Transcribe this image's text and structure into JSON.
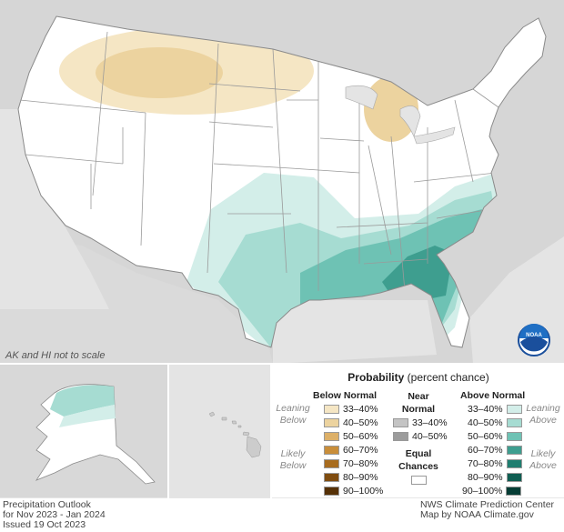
{
  "map": {
    "scale_note": "AK and HI not to scale",
    "logo_text": "NOAA"
  },
  "legend": {
    "title_bold": "Probability",
    "title_rest": " (percent chance)",
    "below": {
      "heading": "Below Normal",
      "side_top": [
        "Leaning",
        "Below"
      ],
      "side_bottom": [
        "Likely",
        "Below"
      ],
      "items": [
        {
          "label": "33–40%",
          "color": "#f5e6c4"
        },
        {
          "label": "40–50%",
          "color": "#ecd39f"
        },
        {
          "label": "50–60%",
          "color": "#ddb068"
        },
        {
          "label": "60–70%",
          "color": "#c98e3a"
        },
        {
          "label": "70–80%",
          "color": "#a86c1e"
        },
        {
          "label": "80–90%",
          "color": "#804d10"
        },
        {
          "label": "90–100%",
          "color": "#553006"
        }
      ]
    },
    "near": {
      "heading": [
        "Near",
        "Normal"
      ],
      "items": [
        {
          "label": "33–40%",
          "color": "#c4c4c4"
        },
        {
          "label": "40–50%",
          "color": "#9c9c9c"
        }
      ],
      "equal": [
        "Equal",
        "Chances"
      ],
      "equal_color": "#ffffff"
    },
    "above": {
      "heading": "Above Normal",
      "side_top": [
        "Leaning",
        "Above"
      ],
      "side_bottom": [
        "Likely",
        "Above"
      ],
      "items": [
        {
          "label": "33–40%",
          "color": "#d3eee9"
        },
        {
          "label": "40–50%",
          "color": "#a6dcd2"
        },
        {
          "label": "50–60%",
          "color": "#6ec2b4"
        },
        {
          "label": "60–70%",
          "color": "#3e9e8f"
        },
        {
          "label": "70–80%",
          "color": "#1f7e70"
        },
        {
          "label": "80–90%",
          "color": "#0f5e52"
        },
        {
          "label": "90–100%",
          "color": "#053d35"
        }
      ]
    }
  },
  "footer": {
    "left": [
      "Precipitation Outlook",
      "for Nov 2023 - Jan 2024",
      "Issued 19 Oct 2023"
    ],
    "right": [
      "NWS Climate Prediction Center",
      "Map by NOAA Climate.gov"
    ]
  }
}
